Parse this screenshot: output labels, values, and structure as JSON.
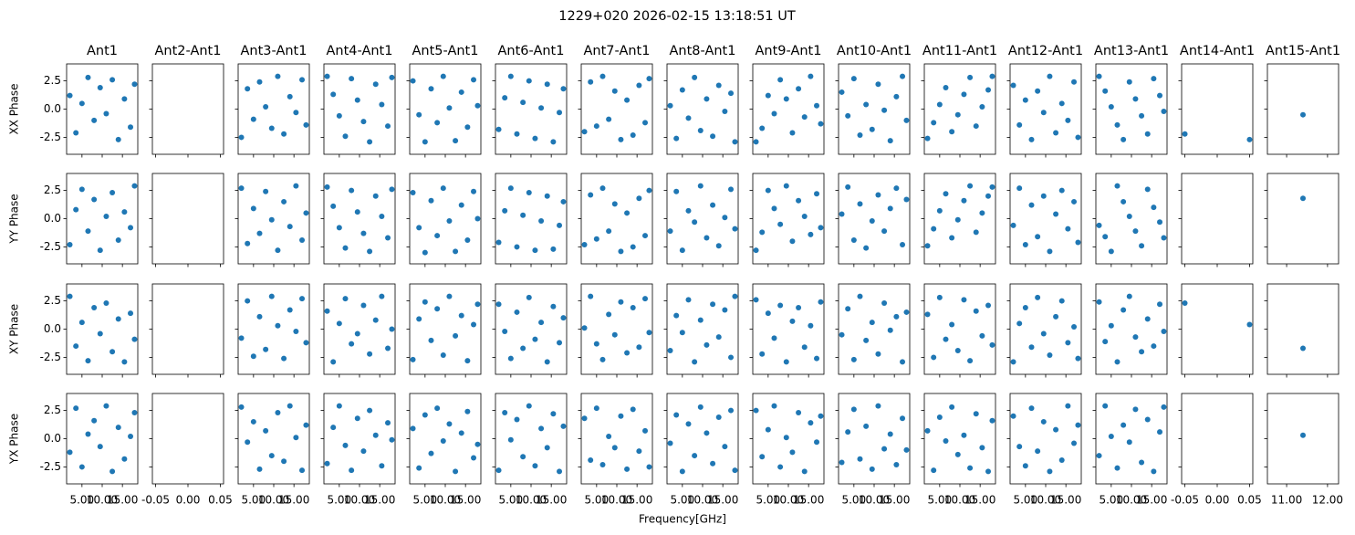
{
  "chart_data": {
    "type": "scatter",
    "title": "1229+020 2026-02-15 13:18:51 UT",
    "x_label": "Frequency[GHz]",
    "color": "#1f77b4",
    "ylim": [
      -4,
      4
    ],
    "yticks": [
      -2.5,
      {
        "value": 0,
        "label": "0.0"
      },
      2.5
    ],
    "x": [
      2,
      3.5,
      5,
      6.5,
      8,
      9.5,
      11,
      12.5,
      14,
      15.5,
      17,
      18
    ],
    "rows": [
      "XX Phase",
      "YY Phase",
      "XY Phase",
      "YX Phase"
    ],
    "columns": [
      {
        "name": "Ant1",
        "xlim": [
          1.2,
          18.8
        ],
        "xticks": [
          {
            "value": 5,
            "label": "5.00"
          },
          {
            "value": 10,
            "label": "10.00"
          },
          {
            "value": 15,
            "label": "15.00"
          }
        ]
      },
      {
        "name": "Ant2-Ant1",
        "xlim": [
          -0.055,
          0.055
        ],
        "xticks": [
          -0.05,
          {
            "value": 0,
            "label": "0.00"
          },
          0.05
        ]
      },
      {
        "name": "Ant3-Ant1",
        "xlim": [
          1.2,
          18.8
        ],
        "xticks": [
          {
            "value": 5,
            "label": "5.00"
          },
          {
            "value": 10,
            "label": "10.00"
          },
          {
            "value": 15,
            "label": "15.00"
          }
        ]
      },
      {
        "name": "Ant4-Ant1",
        "xlim": [
          1.2,
          18.8
        ],
        "xticks": [
          {
            "value": 5,
            "label": "5.00"
          },
          {
            "value": 10,
            "label": "10.00"
          },
          {
            "value": 15,
            "label": "15.00"
          }
        ]
      },
      {
        "name": "Ant5-Ant1",
        "xlim": [
          1.2,
          18.8
        ],
        "xticks": [
          {
            "value": 5,
            "label": "5.00"
          },
          {
            "value": 10,
            "label": "10.00"
          },
          {
            "value": 15,
            "label": "15.00"
          }
        ]
      },
      {
        "name": "Ant6-Ant1",
        "xlim": [
          1.2,
          18.8
        ],
        "xticks": [
          {
            "value": 5,
            "label": "5.00"
          },
          {
            "value": 10,
            "label": "10.00"
          },
          {
            "value": 15,
            "label": "15.00"
          }
        ]
      },
      {
        "name": "Ant7-Ant1",
        "xlim": [
          1.2,
          18.8
        ],
        "xticks": [
          {
            "value": 5,
            "label": "5.00"
          },
          {
            "value": 10,
            "label": "10.00"
          },
          {
            "value": 15,
            "label": "15.00"
          }
        ]
      },
      {
        "name": "Ant8-Ant1",
        "xlim": [
          1.2,
          18.8
        ],
        "xticks": [
          {
            "value": 5,
            "label": "5.00"
          },
          {
            "value": 10,
            "label": "10.00"
          },
          {
            "value": 15,
            "label": "15.00"
          }
        ]
      },
      {
        "name": "Ant9-Ant1",
        "xlim": [
          1.2,
          18.8
        ],
        "xticks": [
          {
            "value": 5,
            "label": "5.00"
          },
          {
            "value": 10,
            "label": "10.00"
          },
          {
            "value": 15,
            "label": "15.00"
          }
        ]
      },
      {
        "name": "Ant10-Ant1",
        "xlim": [
          1.2,
          18.8
        ],
        "xticks": [
          {
            "value": 5,
            "label": "5.00"
          },
          {
            "value": 10,
            "label": "10.00"
          },
          {
            "value": 15,
            "label": "15.00"
          }
        ]
      },
      {
        "name": "Ant11-Ant1",
        "xlim": [
          1.2,
          18.8
        ],
        "xticks": [
          {
            "value": 5,
            "label": "5.00"
          },
          {
            "value": 10,
            "label": "10.00"
          },
          {
            "value": 15,
            "label": "15.00"
          }
        ]
      },
      {
        "name": "Ant12-Ant1",
        "xlim": [
          1.2,
          18.8
        ],
        "xticks": [
          {
            "value": 5,
            "label": "5.00"
          },
          {
            "value": 10,
            "label": "10.00"
          },
          {
            "value": 15,
            "label": "15.00"
          }
        ]
      },
      {
        "name": "Ant13-Ant1",
        "xlim": [
          1.2,
          18.8
        ],
        "xticks": [
          {
            "value": 5,
            "label": "5.00"
          },
          {
            "value": 10,
            "label": "10.00"
          },
          {
            "value": 15,
            "label": "15.00"
          }
        ]
      },
      {
        "name": "Ant14-Ant1",
        "xlim": [
          -0.055,
          0.055
        ],
        "xticks": [
          -0.05,
          {
            "value": 0,
            "label": "0.00"
          },
          0.05
        ]
      },
      {
        "name": "Ant15-Ant1",
        "xlim": [
          10.53,
          12.27
        ],
        "xticks": [
          {
            "value": 11,
            "label": "11.00"
          },
          {
            "value": 12,
            "label": "12.00"
          }
        ]
      }
    ],
    "panels": [
      [
        {
          "values": [
            1.2,
            -2.1,
            0.5,
            2.8,
            -1.0,
            1.9,
            -0.4,
            2.6,
            -2.7,
            0.9,
            -1.6,
            2.2
          ]
        },
        {
          "values": []
        },
        {
          "values": [
            -2.5,
            1.8,
            -0.9,
            2.4,
            0.2,
            -1.7,
            2.9,
            -2.2,
            1.1,
            -0.3,
            2.6,
            -1.4
          ]
        },
        {
          "values": [
            2.9,
            1.3,
            -0.6,
            -2.4,
            2.7,
            0.8,
            -1.1,
            -2.9,
            2.2,
            0.4,
            -1.5,
            2.8
          ]
        },
        {
          "values": [
            2.5,
            -0.5,
            -2.9,
            1.8,
            -1.2,
            2.9,
            0.1,
            -2.8,
            1.5,
            -1.6,
            2.6,
            0.3
          ]
        },
        {
          "values": [
            -1.8,
            1.0,
            2.9,
            -2.2,
            0.6,
            2.5,
            -2.6,
            0.1,
            2.2,
            -2.9,
            -0.3,
            1.8
          ]
        },
        {
          "values": [
            -2.0,
            2.4,
            -1.5,
            2.9,
            -0.9,
            1.6,
            -2.7,
            0.8,
            -2.3,
            2.1,
            -1.2,
            2.7
          ]
        },
        {
          "values": [
            0.3,
            -2.6,
            1.7,
            -0.8,
            2.8,
            -1.9,
            0.9,
            -2.4,
            2.1,
            -0.2,
            1.4,
            -2.9
          ]
        },
        {
          "values": [
            -2.9,
            -1.7,
            1.2,
            -0.4,
            2.6,
            0.9,
            -2.1,
            1.8,
            -0.7,
            2.9,
            0.3,
            -1.3
          ]
        },
        {
          "values": [
            1.5,
            -0.6,
            2.7,
            -2.3,
            0.4,
            -1.8,
            2.2,
            -0.1,
            -2.8,
            1.1,
            2.9,
            -1.0
          ]
        },
        {
          "values": [
            -2.6,
            -1.2,
            0.4,
            1.9,
            -2.0,
            -0.5,
            1.3,
            2.8,
            -1.5,
            0.2,
            1.7,
            2.9
          ]
        },
        {
          "values": [
            2.1,
            -1.4,
            0.8,
            -2.7,
            1.6,
            -0.3,
            2.9,
            -2.1,
            0.5,
            -1.0,
            2.4,
            -2.5
          ]
        },
        {
          "values": [
            2.9,
            1.6,
            0.2,
            -1.4,
            -2.7,
            2.4,
            0.9,
            -0.6,
            -2.2,
            2.7,
            1.2,
            -0.2
          ]
        },
        {
          "x": [
            -0.05,
            0.05
          ],
          "values": [
            -2.2,
            -2.7
          ]
        },
        {
          "x": [
            11.4
          ],
          "values": [
            -0.5
          ]
        }
      ],
      [
        {
          "values": [
            -2.3,
            0.8,
            2.6,
            -1.1,
            1.7,
            -2.8,
            0.2,
            2.3,
            -1.9,
            0.6,
            -0.8,
            2.9
          ]
        },
        {
          "values": []
        },
        {
          "values": [
            2.7,
            -2.2,
            0.9,
            -1.3,
            2.4,
            -0.1,
            -2.8,
            1.5,
            -0.7,
            2.9,
            -1.9,
            0.5
          ]
        },
        {
          "values": [
            2.8,
            1.1,
            -0.8,
            -2.6,
            2.5,
            0.6,
            -1.3,
            -2.9,
            2.0,
            0.2,
            -1.7,
            2.6
          ]
        },
        {
          "values": [
            2.3,
            -0.8,
            -3.0,
            1.6,
            -1.5,
            2.7,
            -0.2,
            -2.9,
            1.2,
            -1.9,
            2.4,
            0.0
          ]
        },
        {
          "values": [
            -2.1,
            0.7,
            2.7,
            -2.5,
            0.3,
            2.3,
            -2.8,
            -0.2,
            2.0,
            -2.7,
            -0.6,
            1.5
          ]
        },
        {
          "values": [
            -2.3,
            2.1,
            -1.8,
            2.7,
            -1.1,
            1.3,
            -2.9,
            0.5,
            -2.5,
            1.8,
            -1.5,
            2.5
          ]
        },
        {
          "values": [
            -1.1,
            2.4,
            -2.8,
            0.7,
            -0.3,
            2.9,
            -1.7,
            1.2,
            -2.4,
            0.1,
            2.6,
            -0.9
          ]
        },
        {
          "values": [
            -2.8,
            -1.2,
            2.5,
            0.9,
            -0.5,
            2.9,
            -2.0,
            1.6,
            0.2,
            -1.4,
            2.2,
            -0.8
          ]
        },
        {
          "values": [
            0.4,
            2.8,
            -1.9,
            1.3,
            -2.6,
            -0.2,
            2.1,
            -1.1,
            0.9,
            2.7,
            -2.3,
            1.7
          ]
        },
        {
          "values": [
            -2.4,
            -0.9,
            0.7,
            2.2,
            -1.7,
            -0.1,
            1.6,
            2.9,
            -1.2,
            0.5,
            2.0,
            2.8
          ]
        },
        {
          "values": [
            -0.6,
            2.7,
            -2.3,
            1.2,
            -1.6,
            2.0,
            -2.9,
            0.4,
            2.5,
            -0.9,
            1.5,
            -2.1
          ]
        },
        {
          "values": [
            -0.6,
            -1.6,
            -2.9,
            2.9,
            1.5,
            0.2,
            -1.1,
            -2.4,
            2.6,
            1.0,
            -0.3,
            -1.7
          ]
        },
        {
          "values": []
        },
        {
          "x": [
            11.4
          ],
          "values": [
            1.8
          ]
        }
      ],
      [
        {
          "values": [
            2.9,
            -1.5,
            0.6,
            -2.8,
            1.9,
            -0.4,
            2.3,
            -2.0,
            0.9,
            -2.9,
            1.4,
            -0.9
          ]
        },
        {
          "values": []
        },
        {
          "values": [
            -0.8,
            2.5,
            -2.4,
            1.1,
            -1.8,
            2.9,
            0.3,
            -2.6,
            1.7,
            -0.2,
            2.7,
            -1.2
          ]
        },
        {
          "values": [
            1.6,
            -2.9,
            0.5,
            2.7,
            -1.3,
            -0.4,
            2.1,
            -2.2,
            0.8,
            2.9,
            -1.7,
            0.0
          ]
        },
        {
          "values": [
            -2.7,
            0.9,
            2.4,
            -1.0,
            1.8,
            -2.3,
            2.9,
            -0.6,
            1.2,
            -2.8,
            0.4,
            2.2
          ]
        },
        {
          "values": [
            2.2,
            -0.2,
            -2.6,
            1.5,
            -1.7,
            2.8,
            -0.9,
            0.6,
            -2.9,
            2.0,
            -1.2,
            1.0
          ]
        },
        {
          "values": [
            0.1,
            2.9,
            -1.3,
            -2.7,
            1.3,
            -0.5,
            2.4,
            -2.1,
            1.9,
            -1.6,
            2.7,
            -0.3
          ]
        },
        {
          "values": [
            -1.9,
            1.2,
            -0.3,
            2.6,
            -2.9,
            0.8,
            -1.4,
            2.2,
            -0.7,
            1.7,
            -2.5,
            2.9
          ]
        },
        {
          "values": [
            2.6,
            -2.2,
            1.4,
            -0.8,
            2.1,
            -2.9,
            0.7,
            1.9,
            -1.6,
            0.3,
            -2.6,
            2.4
          ]
        },
        {
          "values": [
            -0.5,
            1.8,
            -2.7,
            2.9,
            -1.0,
            0.6,
            -2.2,
            2.3,
            -0.1,
            1.1,
            -2.9,
            1.5
          ]
        },
        {
          "values": [
            1.3,
            -2.5,
            2.8,
            -0.9,
            0.4,
            -1.9,
            2.6,
            -2.8,
            1.6,
            -0.6,
            2.1,
            -1.4
          ]
        },
        {
          "values": [
            -2.9,
            0.5,
            1.9,
            -1.6,
            2.8,
            -0.4,
            -2.3,
            1.1,
            2.5,
            -1.2,
            0.2,
            -2.6
          ]
        },
        {
          "values": [
            2.4,
            -1.1,
            0.3,
            -2.9,
            1.7,
            2.9,
            -0.7,
            -2.0,
            0.9,
            -1.5,
            2.2,
            -0.2
          ]
        },
        {
          "x": [
            -0.05,
            0.05
          ],
          "values": [
            2.3,
            0.4
          ]
        },
        {
          "x": [
            11.4
          ],
          "values": [
            -1.7
          ]
        }
      ],
      [
        {
          "values": [
            -1.2,
            2.7,
            -2.5,
            0.4,
            1.6,
            -0.7,
            2.9,
            -2.9,
            1.0,
            -1.8,
            0.2,
            2.3
          ]
        },
        {
          "values": []
        },
        {
          "values": [
            2.8,
            -0.3,
            1.5,
            -2.7,
            0.7,
            -1.5,
            2.3,
            -2.0,
            2.9,
            0.1,
            -2.8,
            1.2
          ]
        },
        {
          "values": [
            -2.2,
            1.0,
            2.9,
            -0.6,
            -2.8,
            1.8,
            -1.1,
            2.5,
            0.3,
            -2.4,
            1.4,
            -0.1
          ]
        },
        {
          "values": [
            0.9,
            -2.6,
            2.1,
            -1.3,
            2.7,
            -0.2,
            1.3,
            -2.9,
            0.5,
            2.4,
            -1.7,
            -0.5
          ]
        },
        {
          "values": [
            -2.8,
            2.3,
            -0.1,
            1.7,
            -1.6,
            2.9,
            -2.4,
            0.9,
            -0.8,
            2.2,
            -2.9,
            1.1
          ]
        },
        {
          "values": [
            1.8,
            -1.9,
            2.7,
            -2.3,
            0.2,
            -0.8,
            2.0,
            -2.7,
            2.6,
            -1.1,
            0.7,
            -2.5
          ]
        },
        {
          "values": [
            -0.4,
            2.1,
            -2.9,
            1.3,
            -1.5,
            2.8,
            0.5,
            -2.2,
            1.9,
            -0.7,
            2.5,
            -2.8
          ]
        },
        {
          "values": [
            2.5,
            -1.6,
            0.8,
            2.9,
            -2.5,
            0.1,
            -1.2,
            2.3,
            -2.9,
            1.4,
            -0.3,
            2.0
          ]
        },
        {
          "values": [
            -2.1,
            0.6,
            2.6,
            -1.8,
            1.1,
            -2.7,
            2.9,
            -0.9,
            0.4,
            -2.3,
            1.8,
            -1.0
          ]
        },
        {
          "values": [
            0.7,
            -2.8,
            1.9,
            -0.2,
            2.8,
            -1.4,
            0.3,
            -2.6,
            2.2,
            -0.8,
            -2.9,
            1.6
          ]
        },
        {
          "values": [
            2.0,
            -0.7,
            -2.4,
            2.7,
            -1.1,
            1.5,
            -2.9,
            0.8,
            -1.9,
            2.9,
            -0.4,
            1.2
          ]
        },
        {
          "values": [
            -1.5,
            2.9,
            0.2,
            -2.6,
            1.2,
            -0.3,
            2.6,
            -2.1,
            1.7,
            -2.9,
            0.6,
            2.8
          ]
        },
        {
          "values": []
        },
        {
          "x": [
            11.4
          ],
          "values": [
            0.3
          ]
        }
      ]
    ]
  }
}
